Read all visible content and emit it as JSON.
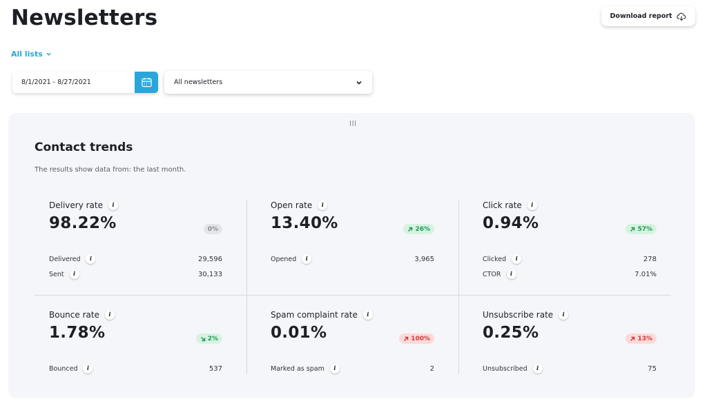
{
  "header": {
    "title": "Newsletters",
    "download_label": "Download report"
  },
  "filters": {
    "list_label": "All lists",
    "date_range": "8/1/2021 - 8/27/2021",
    "newsletter_select": "All newsletters"
  },
  "card": {
    "title": "Contact trends",
    "subtitle": "The results show data from: the last month.",
    "drag_handle": "|||"
  },
  "colors": {
    "accent": "#2aa6d9",
    "positive": "#1e9a55",
    "negative": "#d33939"
  },
  "metrics": {
    "delivery": {
      "label": "Delivery rate",
      "value": "98.22%",
      "badge": "0%",
      "badge_type": "neutral",
      "rows": [
        {
          "label": "Delivered",
          "value": "29,596"
        },
        {
          "label": "Sent",
          "value": "30,133"
        }
      ]
    },
    "open": {
      "label": "Open rate",
      "value": "13.40%",
      "badge": "26%",
      "badge_type": "green",
      "arrow": "up",
      "rows": [
        {
          "label": "Opened",
          "value": "3,965"
        }
      ]
    },
    "click": {
      "label": "Click rate",
      "value": "0.94%",
      "badge": "57%",
      "badge_type": "green",
      "arrow": "up",
      "rows": [
        {
          "label": "Clicked",
          "value": "278"
        },
        {
          "label": "CTOR",
          "value": "7.01%"
        }
      ]
    },
    "bounce": {
      "label": "Bounce rate",
      "value": "1.78%",
      "badge": "2%",
      "badge_type": "green",
      "arrow": "down",
      "rows": [
        {
          "label": "Bounced",
          "value": "537"
        }
      ]
    },
    "spam": {
      "label": "Spam complaint rate",
      "value": "0.01%",
      "badge": "100%",
      "badge_type": "red",
      "arrow": "up",
      "rows": [
        {
          "label": "Marked as spam",
          "value": "2"
        }
      ]
    },
    "unsubscribe": {
      "label": "Unsubscribe rate",
      "value": "0.25%",
      "badge": "13%",
      "badge_type": "red",
      "arrow": "up",
      "rows": [
        {
          "label": "Unsubscribed",
          "value": "75"
        }
      ]
    }
  }
}
